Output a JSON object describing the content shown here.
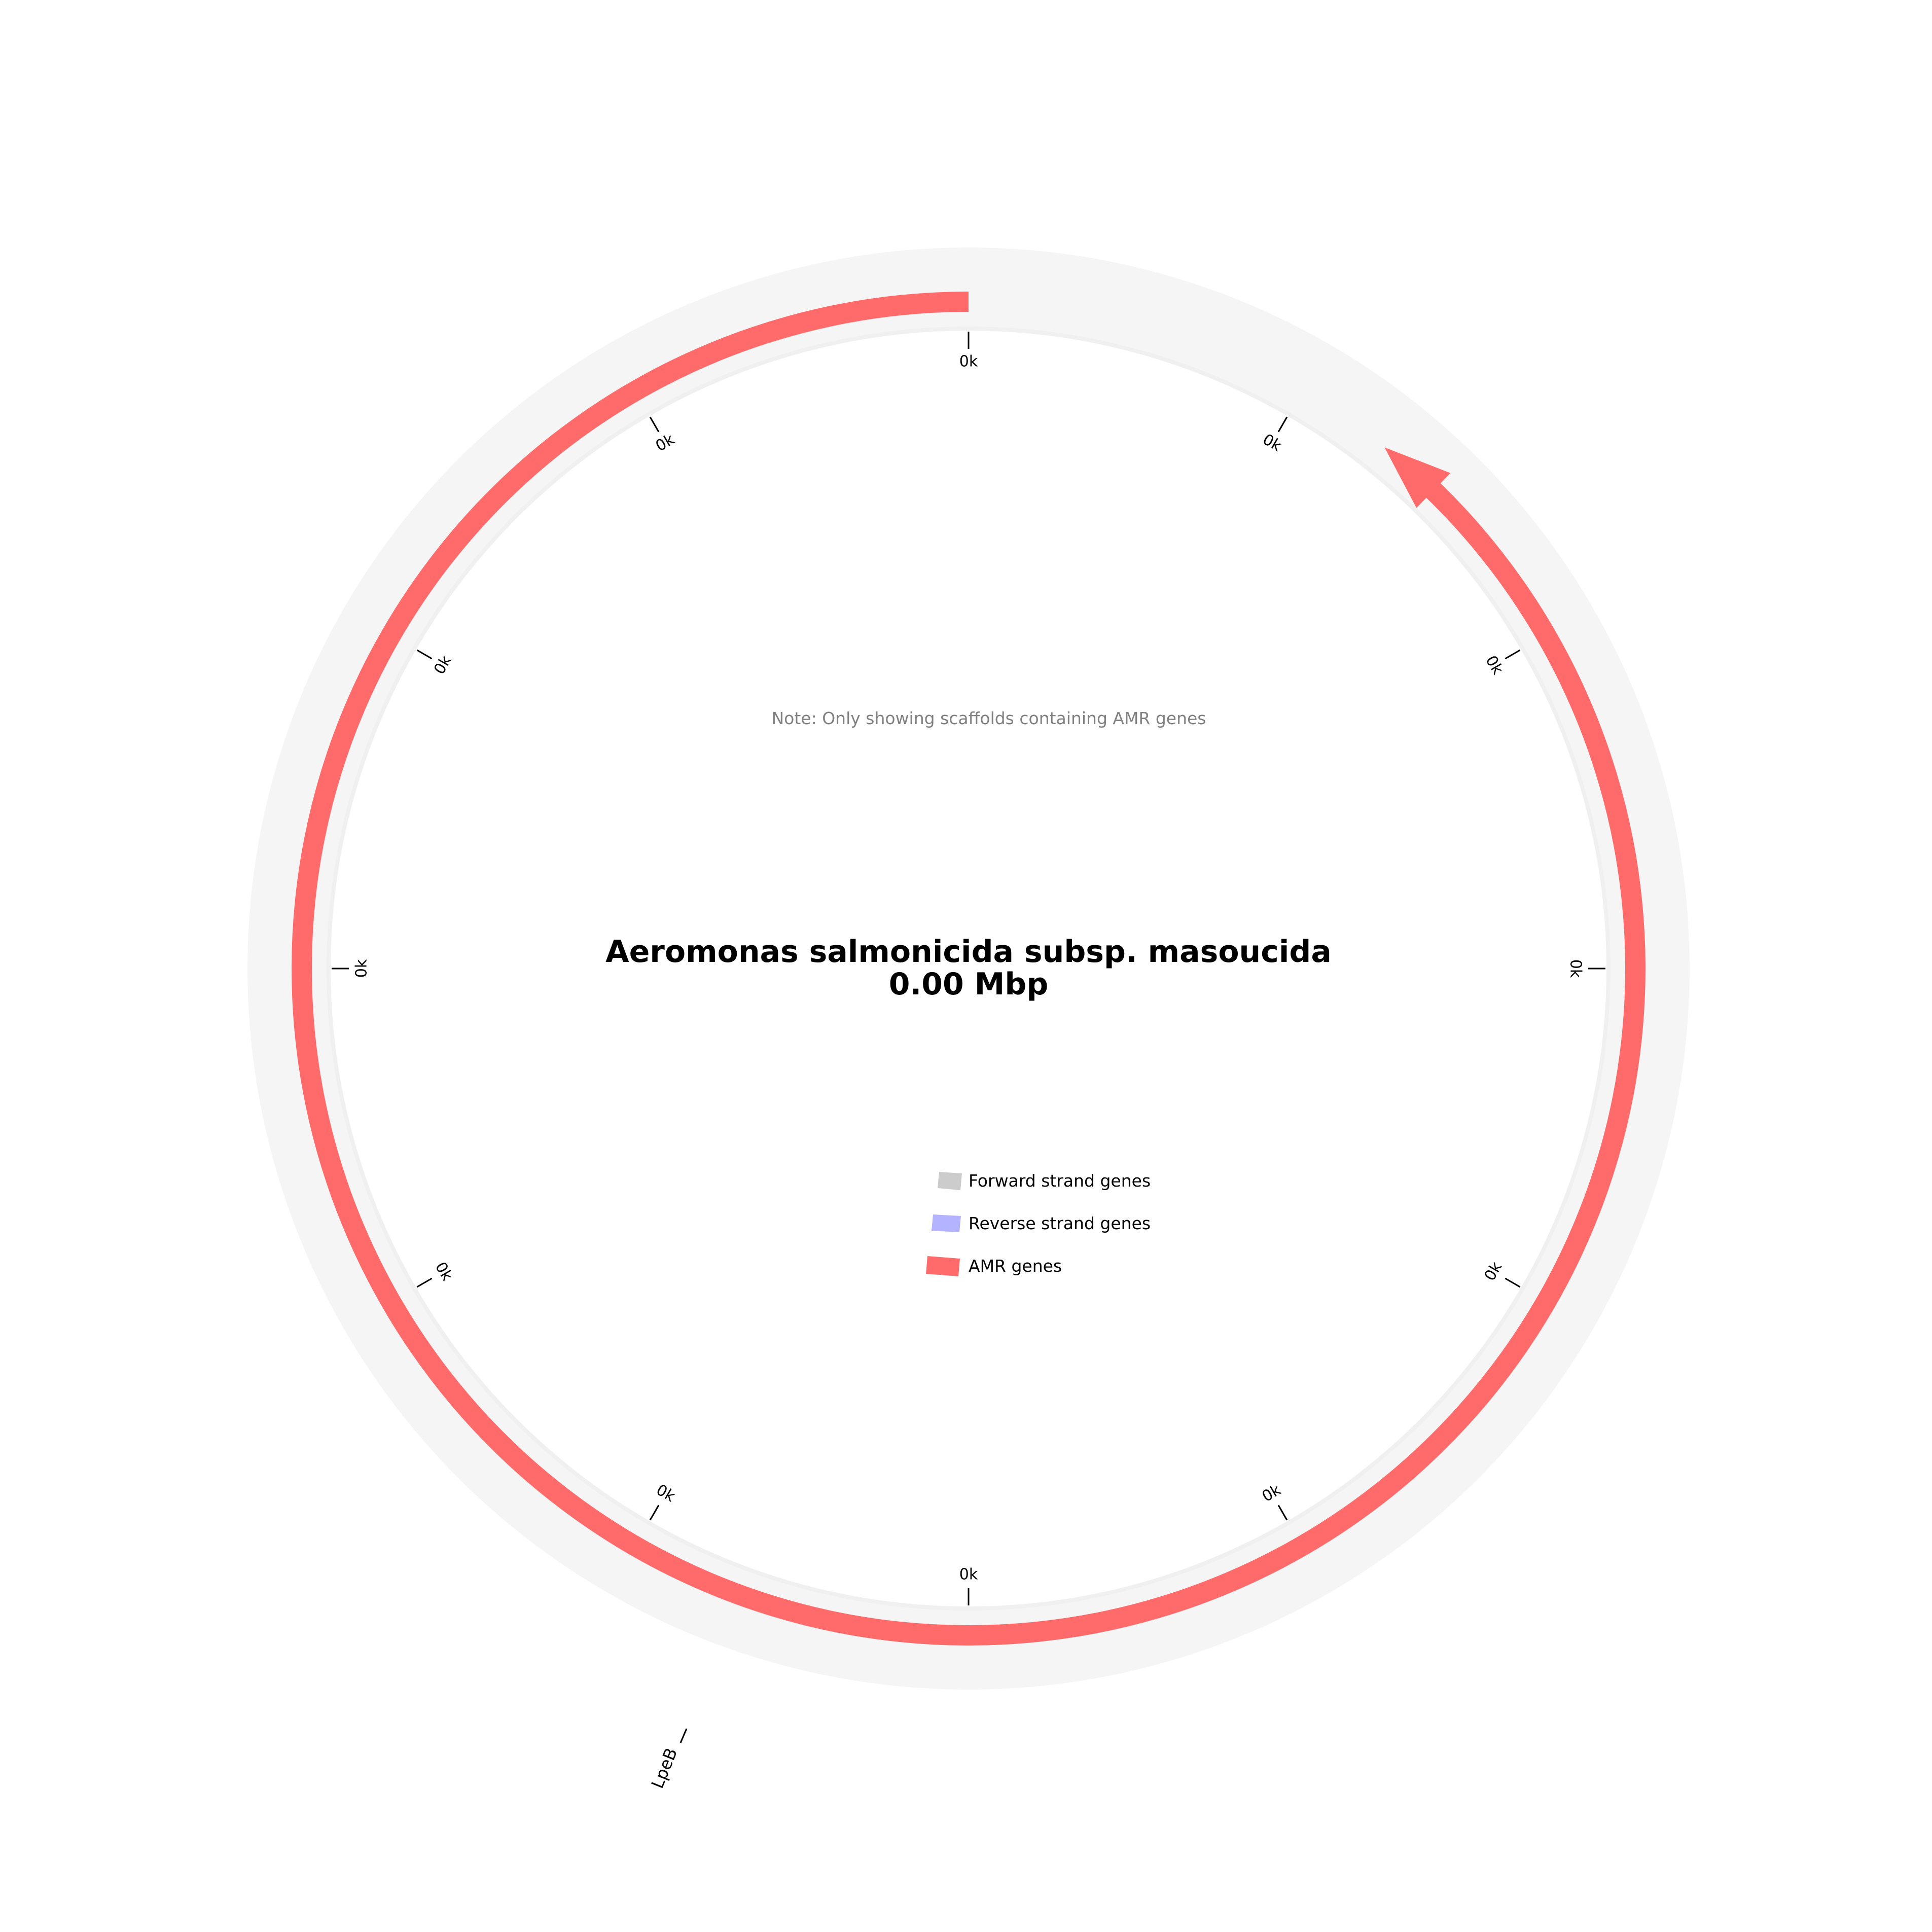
{
  "title": {
    "organism": "Aeromonas salmonicida subsp. masoucida",
    "size": "0.00 Mbp"
  },
  "note": "Note: Only showing scaffolds containing AMR genes",
  "colors": {
    "backbone": "#f5f5f5",
    "inner_track": "#f0f0f0",
    "forward": "#cccccc",
    "reverse": "#b3b3ff",
    "amr": "#ff6b6b",
    "tick": "#000000"
  },
  "ticks": [
    "0k",
    "0k",
    "0k",
    "0k",
    "0k",
    "0k",
    "0k",
    "0k",
    "0k",
    "0k",
    "0k",
    "0k"
  ],
  "legend": [
    {
      "label": "Forward strand genes",
      "color": "#cccccc"
    },
    {
      "label": "Reverse strand genes",
      "color": "#b3b3ff"
    },
    {
      "label": "AMR genes",
      "color": "#ff6b6b"
    }
  ],
  "genes": [
    {
      "name": "LpeB",
      "strand": "reverse",
      "amr": true
    }
  ]
}
